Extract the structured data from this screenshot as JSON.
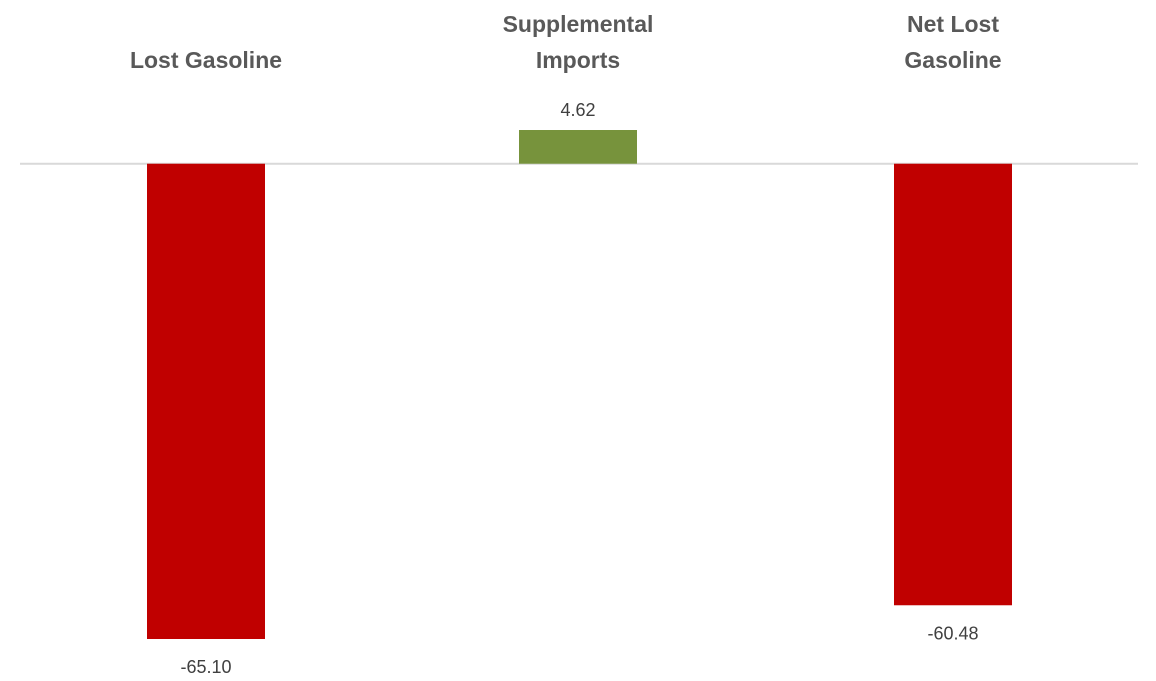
{
  "chart_data": {
    "type": "bar",
    "title": "",
    "xlabel": "",
    "ylabel": "",
    "categories": [
      [
        "Lost Gasoline"
      ],
      [
        "Supplemental",
        "Imports"
      ],
      [
        "Net Lost",
        "Gasoline"
      ]
    ],
    "values": [
      -65.1,
      4.62,
      -60.48
    ],
    "value_labels": [
      "-65.10",
      "4.62",
      "-60.48"
    ],
    "colors": [
      "#c00000",
      "#77933c",
      "#c00000"
    ],
    "baseline_color": "#d9d9d9",
    "ylim": [
      -65.1,
      4.62
    ],
    "grid": false,
    "legend": "none"
  }
}
